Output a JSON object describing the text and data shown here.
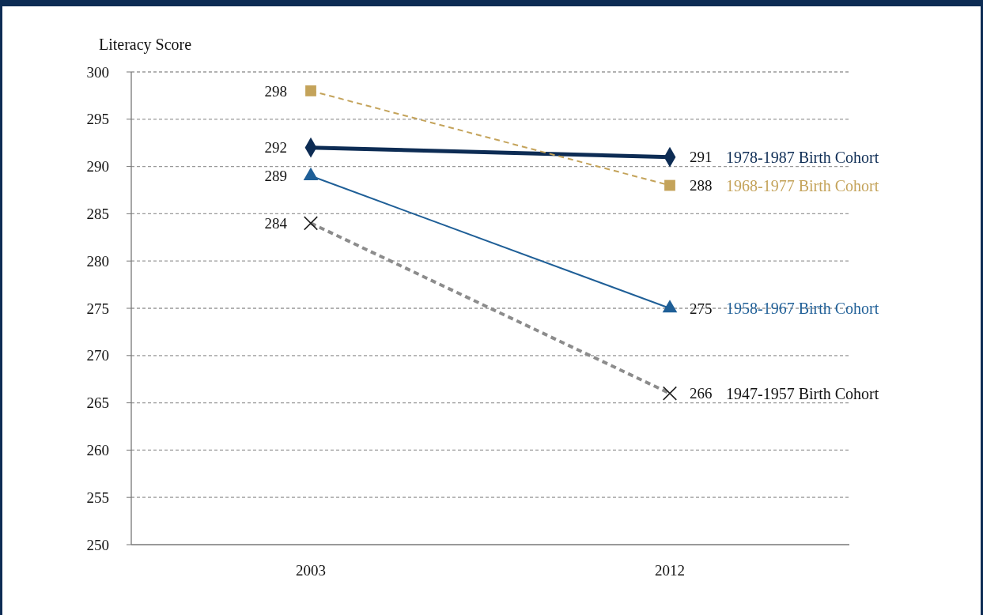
{
  "chart_data": {
    "type": "line",
    "ylabel": "Literacy Score",
    "categories": [
      "2003",
      "2012"
    ],
    "series": [
      {
        "name": "1978-1987 Birth Cohort",
        "color": "#0d2c54",
        "values": [
          292,
          291
        ],
        "marker": "diamond",
        "line_style": "solid"
      },
      {
        "name": "1968-1977 Birth Cohort",
        "color": "#c4a35a",
        "values": [
          298,
          288
        ],
        "marker": "square",
        "line_style": "dashed"
      },
      {
        "name": "1958-1967 Birth Cohort",
        "color": "#1f5f97",
        "values": [
          289,
          275
        ],
        "marker": "triangle",
        "line_style": "solid"
      },
      {
        "name": "1947-1957 Birth Cohort",
        "color": "#8c8c8c",
        "values": [
          284,
          266
        ],
        "marker": "cross",
        "line_style": "dashed"
      }
    ],
    "ylim": [
      250,
      300
    ],
    "yticks": [
      250,
      255,
      260,
      265,
      270,
      275,
      280,
      285,
      290,
      295,
      300
    ],
    "grid": "y",
    "data_labels": true
  }
}
